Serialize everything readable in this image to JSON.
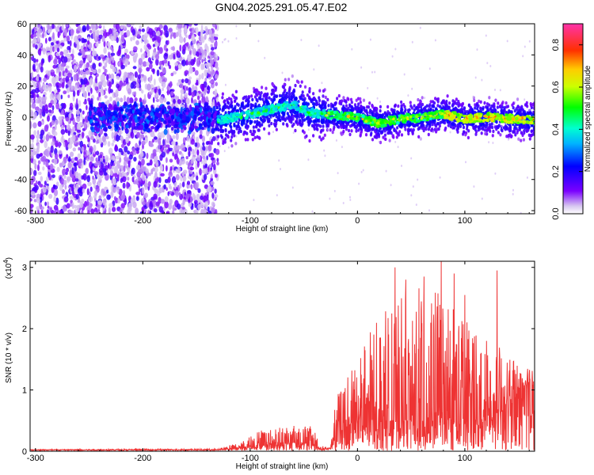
{
  "chart_data": [
    {
      "type": "heatmap",
      "title": "GN04.2025.291.05.47.E02",
      "xlabel": "Height of straight line (km)",
      "ylabel": "Frequency (Hz)",
      "xlim": [
        -305,
        165
      ],
      "ylim": [
        -62,
        60
      ],
      "xticks": [
        -300,
        -200,
        -100,
        0,
        100
      ],
      "yticks": [
        60,
        40,
        20,
        0,
        -20,
        -40,
        -60
      ],
      "colorbar": {
        "label": "Normalized spectral amplitude",
        "range": [
          0.0,
          0.9
        ],
        "ticks": [
          "0.0",
          "0.2",
          "0.4",
          "0.6",
          "0.8"
        ]
      },
      "features": {
        "broadband_noise_region_km": [
          -305,
          -130
        ],
        "ridge_region_km": [
          -130,
          165
        ],
        "ridge_center_hz": [
          [
            -130,
            -2
          ],
          [
            -100,
            2
          ],
          [
            -80,
            5
          ],
          [
            -60,
            8
          ],
          [
            -45,
            3
          ],
          [
            -20,
            1
          ],
          [
            0,
            0
          ],
          [
            20,
            -4
          ],
          [
            40,
            -1
          ],
          [
            60,
            0
          ],
          [
            80,
            2
          ],
          [
            100,
            -1
          ],
          [
            120,
            0
          ],
          [
            140,
            -1
          ],
          [
            165,
            -2
          ]
        ]
      }
    },
    {
      "type": "line",
      "xlabel": "Height of straight line (km)",
      "ylabel": "SNR (10 * v/v)",
      "scale_label": "(x10",
      "scale_exp": "4",
      "scale_close": ")",
      "xlim": [
        -305,
        165
      ],
      "ylim": [
        0,
        3.1
      ],
      "xticks": [
        -300,
        -200,
        -100,
        0,
        100
      ],
      "yticks": [
        0,
        1,
        2,
        3
      ],
      "series": [
        {
          "name": "SNR",
          "color": "#ee3333",
          "envelope": [
            [
              -305,
              0.02,
              0.03
            ],
            [
              -130,
              0.02,
              0.04
            ],
            [
              -110,
              0.05,
              0.15
            ],
            [
              -90,
              0.1,
              0.35
            ],
            [
              -60,
              0.15,
              0.45
            ],
            [
              -40,
              0.1,
              0.4
            ],
            [
              -35,
              0.02,
              0.1
            ],
            [
              -25,
              0.05,
              0.05
            ],
            [
              -20,
              0.3,
              0.9
            ],
            [
              -10,
              0.4,
              1.2
            ],
            [
              0,
              0.5,
              1.6
            ],
            [
              20,
              0.5,
              2.2
            ],
            [
              40,
              0.5,
              2.6
            ],
            [
              60,
              0.5,
              2.7
            ],
            [
              80,
              0.5,
              2.6
            ],
            [
              100,
              0.5,
              2.3
            ],
            [
              125,
              0.5,
              1.9
            ],
            [
              140,
              0.8,
              1.5
            ],
            [
              165,
              1.1,
              1.4
            ]
          ],
          "spikes": [
            [
              35,
              3.0
            ],
            [
              45,
              2.8
            ],
            [
              62,
              2.85
            ],
            [
              78,
              3.1
            ],
            [
              90,
              2.9
            ],
            [
              100,
              2.55
            ],
            [
              130,
              2.95
            ]
          ]
        }
      ]
    }
  ]
}
